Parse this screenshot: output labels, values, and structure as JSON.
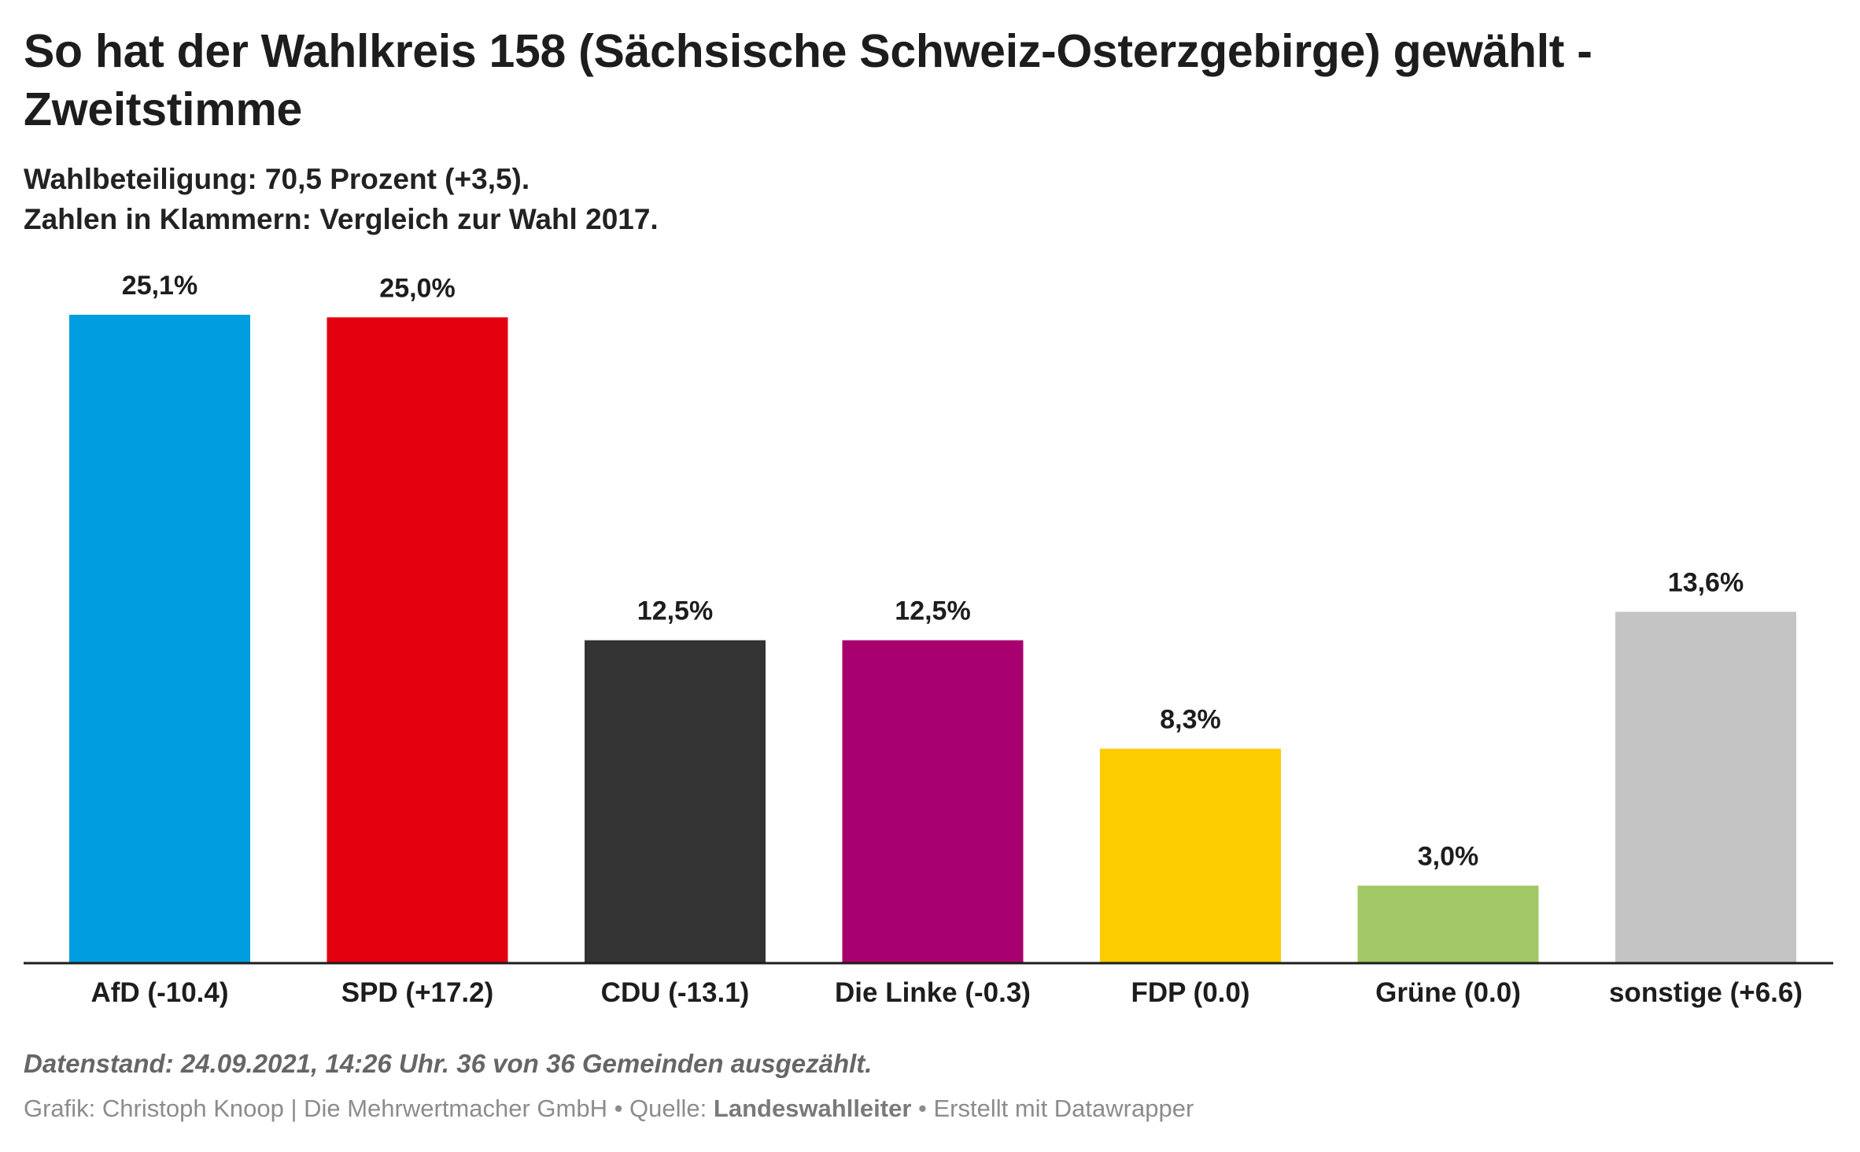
{
  "header": {
    "title": "So hat der Wahlkreis 158 (Sächsische Schweiz-Osterzgebirge) gewählt - Zweitstimme",
    "subtitle_line1": "Wahlbeteiligung: 70,5 Prozent (+3,5).",
    "subtitle_line2": "Zahlen in Klammern: Vergleich zur Wahl 2017."
  },
  "chart_data": {
    "type": "bar",
    "categories": [
      "AfD (-10.4)",
      "SPD (+17.2)",
      "CDU (-13.1)",
      "Die Linke (-0.3)",
      "FDP (0.0)",
      "Grüne (0.0)",
      "sonstige (+6.6)"
    ],
    "values": [
      25.1,
      25.0,
      12.5,
      12.5,
      8.3,
      3.0,
      13.6
    ],
    "value_labels": [
      "25,1%",
      "25,0%",
      "12,5%",
      "12,5%",
      "8,3%",
      "3,0%",
      "13,6%"
    ],
    "colors": [
      "#009ee0",
      "#e3000f",
      "#333333",
      "#a8006f",
      "#fccc00",
      "#a1c865",
      "#c4c4c4"
    ],
    "ylim": [
      0,
      25.1
    ],
    "grid": false,
    "legend": "none"
  },
  "footer": {
    "note": "Datenstand: 24.09.2021, 14:26 Uhr. 36 von 36 Gemeinden ausgezählt.",
    "credit_prefix": "Grafik: Christoph Knoop | Die Mehrwertmacher GmbH • Quelle: ",
    "credit_source": "Landeswahlleiter",
    "credit_suffix": " • Erstellt mit Datawrapper"
  }
}
